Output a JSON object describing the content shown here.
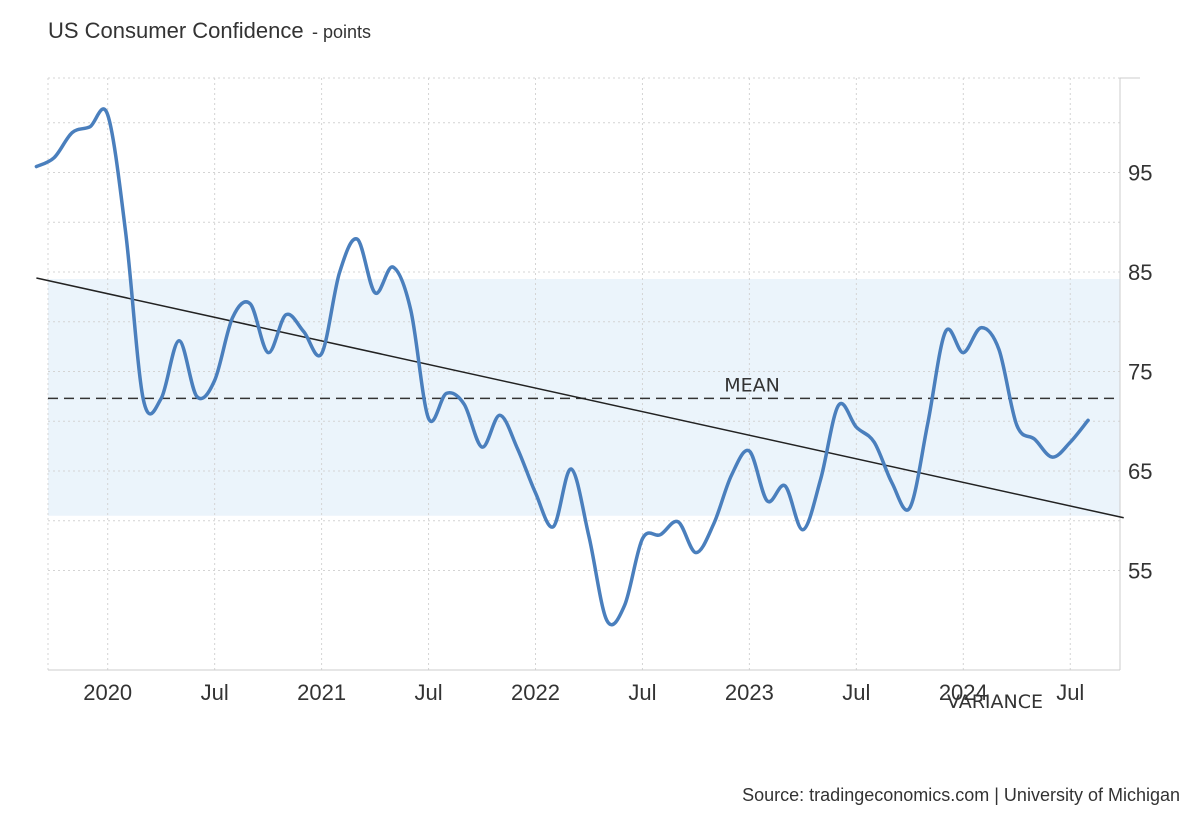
{
  "title": "US Consumer Confidence",
  "subtitle": "- points",
  "source": "Source: tradingeconomics.com | University of Michigan",
  "chart_data": {
    "type": "line",
    "title": "US Consumer Confidence",
    "ylabel": "points",
    "xlabel": "",
    "x_axis": {
      "type": "date",
      "range": [
        "2019-09",
        "2024-10"
      ],
      "ticks": [
        {
          "x": "2020-01",
          "label": "2020"
        },
        {
          "x": "2020-07",
          "label": "Jul"
        },
        {
          "x": "2021-01",
          "label": "2021"
        },
        {
          "x": "2021-07",
          "label": "Jul"
        },
        {
          "x": "2022-01",
          "label": "2022"
        },
        {
          "x": "2022-07",
          "label": "Jul"
        },
        {
          "x": "2023-01",
          "label": "2023"
        },
        {
          "x": "2023-07",
          "label": "Jul"
        },
        {
          "x": "2024-01",
          "label": "2024"
        },
        {
          "x": "2024-07",
          "label": "Jul"
        }
      ]
    },
    "y_axis": {
      "range": [
        45,
        104.5
      ],
      "ticks": [
        55,
        65,
        75,
        85,
        95
      ],
      "position": "right"
    },
    "grid": true,
    "series": [
      {
        "color": "#4a7fbd",
        "points": [
          [
            "2019-09",
            95.6
          ],
          [
            "2019-10",
            96.5
          ],
          [
            "2019-11",
            99.0
          ],
          [
            "2019-12",
            99.6
          ],
          [
            "2020-01",
            100.8
          ],
          [
            "2020-02",
            89.1
          ],
          [
            "2020-03",
            72.2
          ],
          [
            "2020-04",
            72.3
          ],
          [
            "2020-05",
            78.1
          ],
          [
            "2020-06",
            72.5
          ],
          [
            "2020-07",
            74.1
          ],
          [
            "2020-08",
            80.4
          ],
          [
            "2020-09",
            81.8
          ],
          [
            "2020-10",
            76.9
          ],
          [
            "2020-11",
            80.7
          ],
          [
            "2020-12",
            79.0
          ],
          [
            "2021-01",
            76.8
          ],
          [
            "2021-02",
            84.9
          ],
          [
            "2021-03",
            88.3
          ],
          [
            "2021-04",
            82.9
          ],
          [
            "2021-05",
            85.5
          ],
          [
            "2021-06",
            81.2
          ],
          [
            "2021-07",
            70.3
          ],
          [
            "2021-08",
            72.8
          ],
          [
            "2021-09",
            71.7
          ],
          [
            "2021-10",
            67.4
          ],
          [
            "2021-11",
            70.6
          ],
          [
            "2021-12",
            67.2
          ],
          [
            "2022-01",
            62.8
          ],
          [
            "2022-02",
            59.4
          ],
          [
            "2022-03",
            65.2
          ],
          [
            "2022-04",
            58.4
          ],
          [
            "2022-05",
            50.0
          ],
          [
            "2022-06",
            51.5
          ],
          [
            "2022-07",
            58.2
          ],
          [
            "2022-08",
            58.6
          ],
          [
            "2022-09",
            59.9
          ],
          [
            "2022-10",
            56.8
          ],
          [
            "2022-11",
            59.7
          ],
          [
            "2022-12",
            64.6
          ],
          [
            "2023-01",
            67.0
          ],
          [
            "2023-02",
            62.0
          ],
          [
            "2023-03",
            63.5
          ],
          [
            "2023-04",
            59.1
          ],
          [
            "2023-05",
            64.2
          ],
          [
            "2023-06",
            71.6
          ],
          [
            "2023-07",
            69.4
          ],
          [
            "2023-08",
            67.9
          ],
          [
            "2023-09",
            63.8
          ],
          [
            "2023-10",
            61.3
          ],
          [
            "2023-11",
            69.7
          ],
          [
            "2023-12",
            79.0
          ],
          [
            "2024-01",
            76.9
          ],
          [
            "2024-02",
            79.4
          ],
          [
            "2024-03",
            77.2
          ],
          [
            "2024-04",
            69.6
          ],
          [
            "2024-05",
            68.2
          ],
          [
            "2024-06",
            66.4
          ],
          [
            "2024-07",
            67.9
          ],
          [
            "2024-08",
            70.1
          ]
        ]
      }
    ],
    "mean": {
      "label": "MEAN",
      "value": 72.3
    },
    "variance_band": {
      "label": "VARIANCE",
      "range": [
        60.5,
        84.3
      ]
    },
    "trend_line": {
      "start": [
        "2019-09",
        84.4
      ],
      "end": [
        "2024-10",
        60.3
      ]
    },
    "colors": {
      "line": "#4a7fbd",
      "band": "#ebf4fb",
      "grid": "#d4d4d4",
      "mean": "#333333",
      "trend": "#222222"
    }
  }
}
